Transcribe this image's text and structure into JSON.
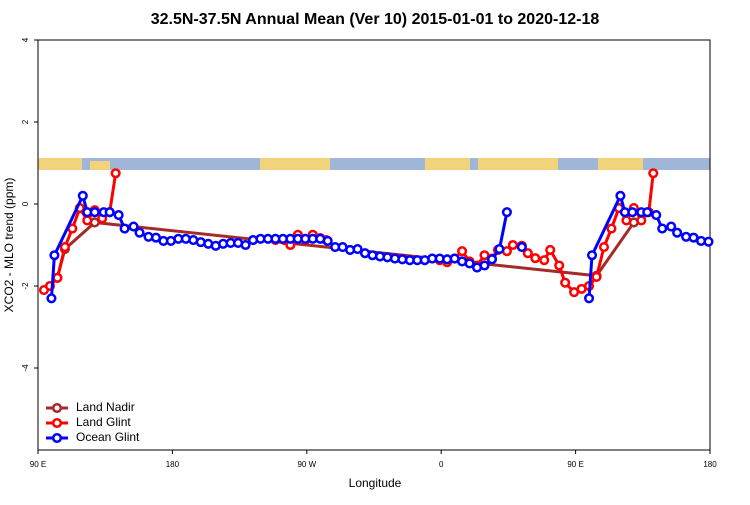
{
  "chart_data": {
    "type": "line",
    "title": "32.5N-37.5N Annual Mean (Ver 10)   2015-01-01 to 2020-12-18",
    "x_label": "Longitude",
    "y_label": "XCO2 - MLO trend (ppm)",
    "xlim": [
      90,
      540
    ],
    "ylim": [
      -6,
      4
    ],
    "xticks": [
      {
        "value": 90,
        "label": "90 E"
      },
      180,
      {
        "value": 270,
        "label": "90 W"
      },
      {
        "value": 360,
        "label": "0"
      },
      {
        "value": 450,
        "label": "90 E"
      },
      {
        "value": 540,
        "label": "180"
      }
    ],
    "yticks": [
      4,
      2,
      0,
      -2,
      -4
    ],
    "legend": "bottom-left",
    "grid": false,
    "series": [
      {
        "name": "Land Nadir",
        "color": "#a52a2a",
        "x": [
          103,
          108,
          128,
          464,
          489
        ],
        "values": [
          -1.8,
          -1.1,
          -0.45,
          -1.75,
          -0.45
        ]
      },
      {
        "name": "Land Glint",
        "color": "#ff0000",
        "x": [
          94,
          98,
          103,
          108,
          113,
          118,
          123,
          128,
          133,
          138,
          142,
          200,
          249,
          255,
          259,
          264,
          269,
          274,
          279,
          283,
          320,
          354,
          359,
          364,
          369,
          374,
          379,
          384,
          389,
          394,
          398,
          404,
          408,
          414,
          418,
          423,
          429,
          433,
          439,
          443,
          449,
          454,
          459,
          464,
          469,
          474,
          479,
          484,
          489,
          494,
          499,
          502
        ],
        "values": [
          -2.1,
          -2.0,
          -1.8,
          -1.05,
          -0.6,
          -0.1,
          -0.4,
          -0.15,
          -0.35,
          -0.2,
          0.75,
          null,
          -0.88,
          -0.88,
          -1.0,
          -0.75,
          -0.88,
          -0.75,
          -0.83,
          -0.88,
          null,
          -1.33,
          -1.37,
          -1.42,
          -1.33,
          -1.15,
          -1.4,
          -1.5,
          -1.25,
          -1.33,
          -1.12,
          -1.15,
          -1.0,
          -1.02,
          -1.2,
          -1.32,
          -1.37,
          -1.12,
          -1.5,
          -1.92,
          -2.15,
          -2.07,
          -2.0,
          -1.78,
          -1.05,
          -0.6,
          -0.1,
          -0.4,
          -0.1,
          -0.4,
          -0.2,
          0.75
        ]
      },
      {
        "name": "Ocean Glint",
        "color": "#0000ff",
        "x": [
          99,
          101,
          120,
          123,
          128,
          134,
          138,
          144,
          148,
          154,
          158,
          164,
          169,
          174,
          179,
          184,
          189,
          194,
          199,
          204,
          209,
          214,
          219,
          224,
          229,
          234,
          239,
          244,
          249,
          254,
          259,
          264,
          269,
          274,
          279,
          284,
          289,
          294,
          299,
          304,
          309,
          314,
          319,
          324,
          329,
          334,
          339,
          344,
          349,
          354,
          359,
          364,
          369,
          374,
          379,
          384,
          389,
          394,
          399,
          404,
          409,
          414,
          436,
          459,
          461,
          480,
          483,
          488,
          494,
          498,
          504,
          508,
          514,
          518,
          524,
          529,
          534,
          539
        ],
        "values": [
          -2.3,
          -1.25,
          0.2,
          -0.2,
          -0.2,
          -0.2,
          -0.2,
          -0.27,
          -0.6,
          -0.55,
          -0.7,
          -0.8,
          -0.82,
          -0.9,
          -0.9,
          -0.85,
          -0.85,
          -0.88,
          -0.93,
          -0.97,
          -1.02,
          -0.97,
          -0.95,
          -0.95,
          -1.0,
          -0.88,
          -0.85,
          -0.85,
          -0.85,
          -0.85,
          -0.85,
          -0.85,
          -0.85,
          -0.85,
          -0.85,
          -0.9,
          -1.05,
          -1.05,
          -1.12,
          -1.1,
          -1.2,
          -1.25,
          -1.28,
          -1.3,
          -1.33,
          -1.35,
          -1.37,
          -1.37,
          -1.37,
          -1.33,
          -1.33,
          -1.35,
          -1.33,
          -1.4,
          -1.45,
          -1.55,
          -1.5,
          -1.35,
          -1.1,
          -0.2,
          null,
          -1.05,
          null,
          -2.3,
          -1.25,
          0.2,
          -0.2,
          -0.2,
          -0.2,
          -0.2,
          -0.27,
          -0.6,
          -0.55,
          -0.7,
          -0.8,
          -0.82,
          -0.9,
          -0.92
        ]
      }
    ]
  }
}
